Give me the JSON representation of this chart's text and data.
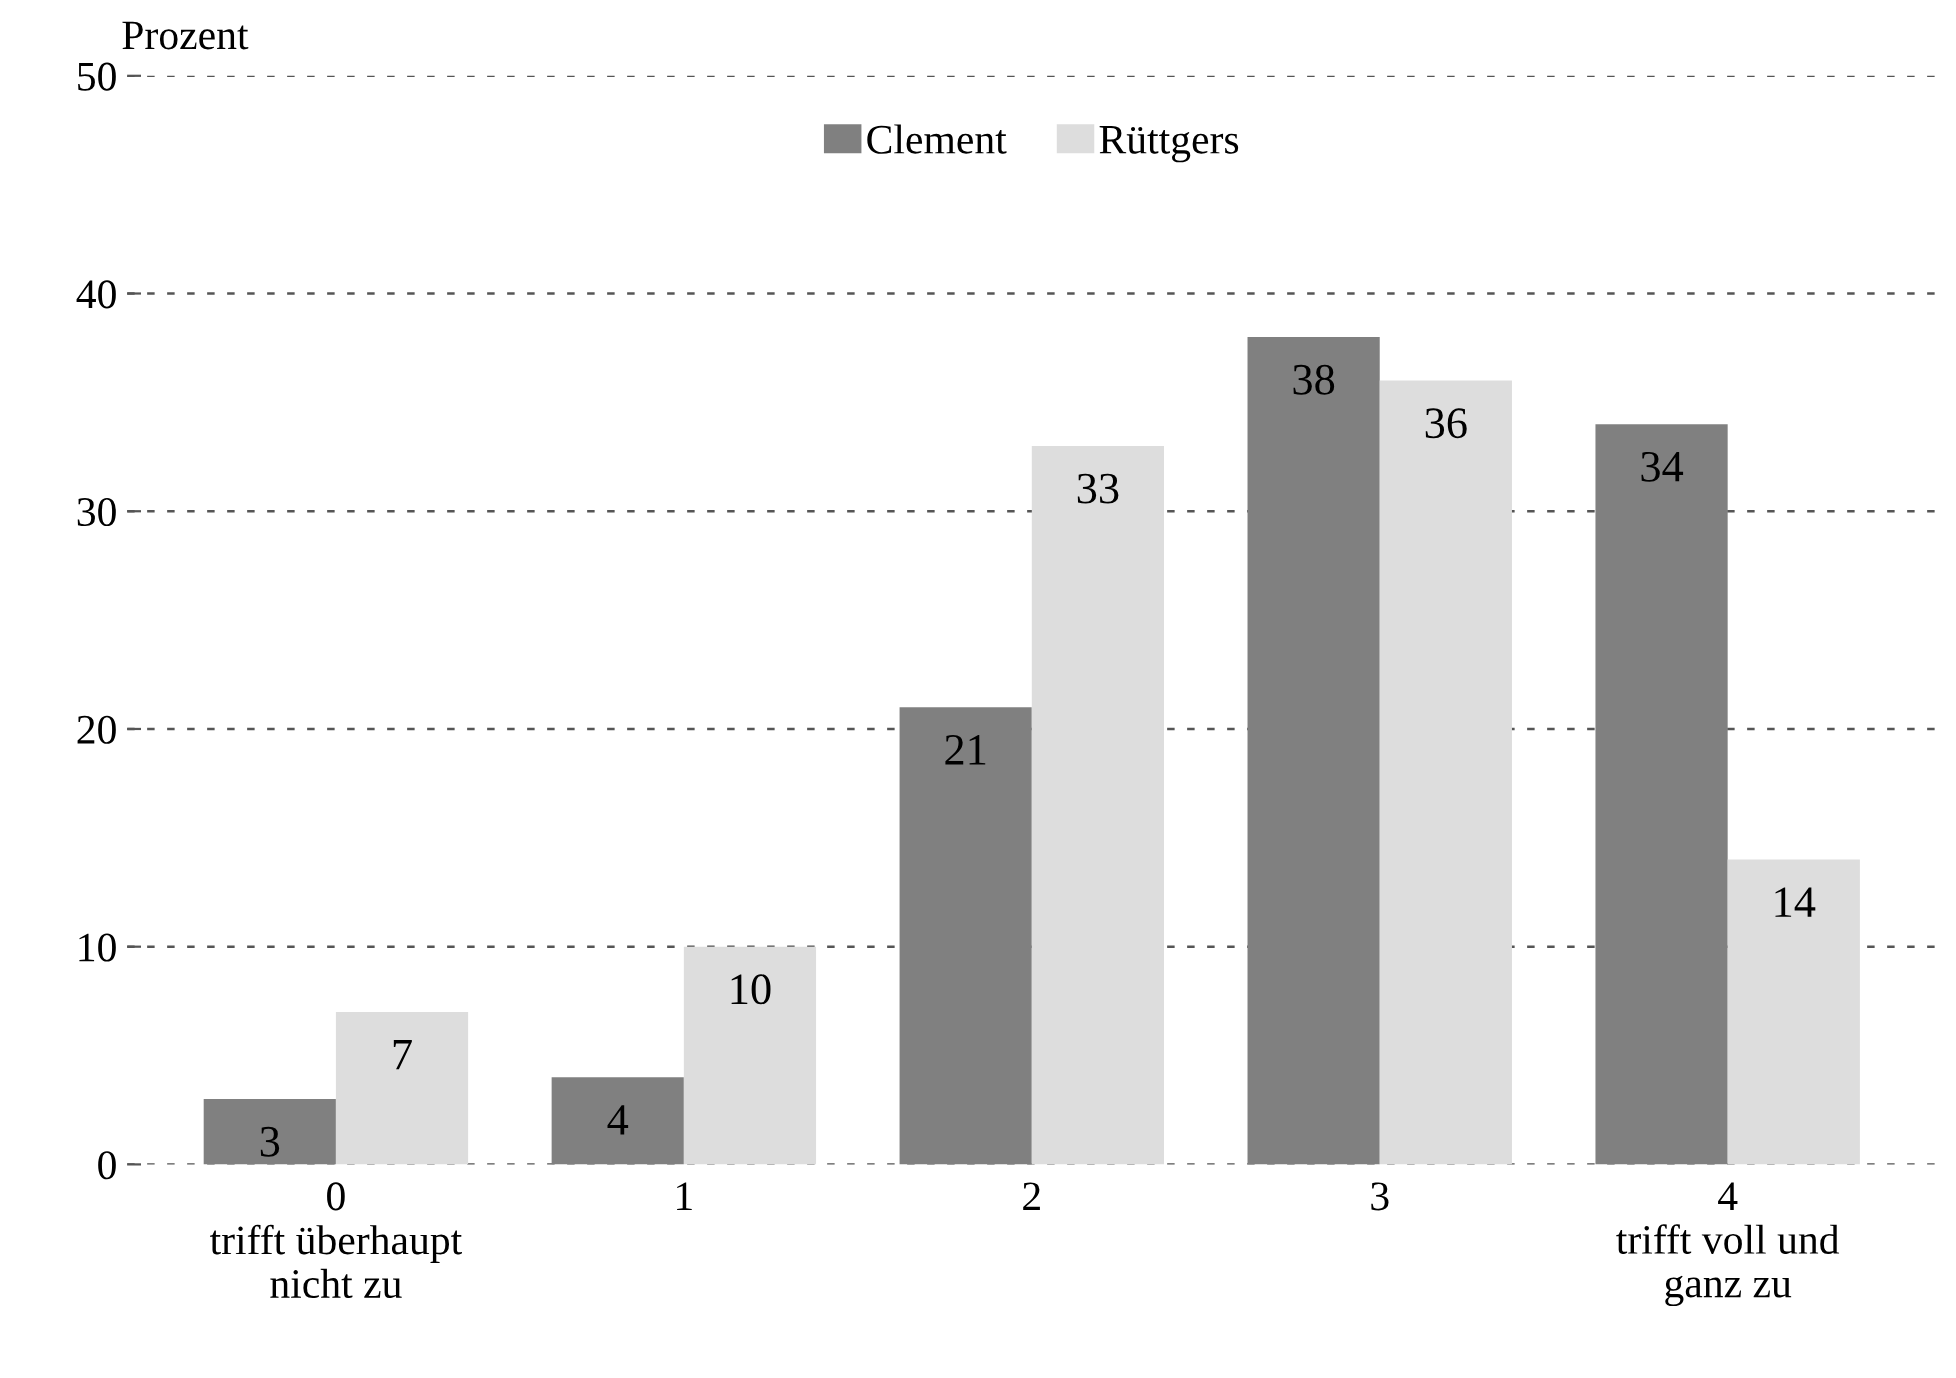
{
  "chart_data": {
    "type": "bar",
    "ylabel": "Prozent",
    "categories": [
      "0\ntrifft überhaupt\nnicht zu",
      "1",
      "2",
      "3",
      "4\ntrifft voll und\nganz zu"
    ],
    "series": [
      {
        "name": "Clement",
        "color": "#808080",
        "values": [
          3,
          4,
          21,
          38,
          34
        ]
      },
      {
        "name": "Rüttgers",
        "color": "#dddddd",
        "values": [
          7,
          10,
          33,
          36,
          14
        ]
      }
    ],
    "ylim": [
      0,
      50
    ],
    "yticks": [
      0,
      10,
      20,
      30,
      40,
      50
    ],
    "grid": "y",
    "legend": "top",
    "data_labels": true
  }
}
